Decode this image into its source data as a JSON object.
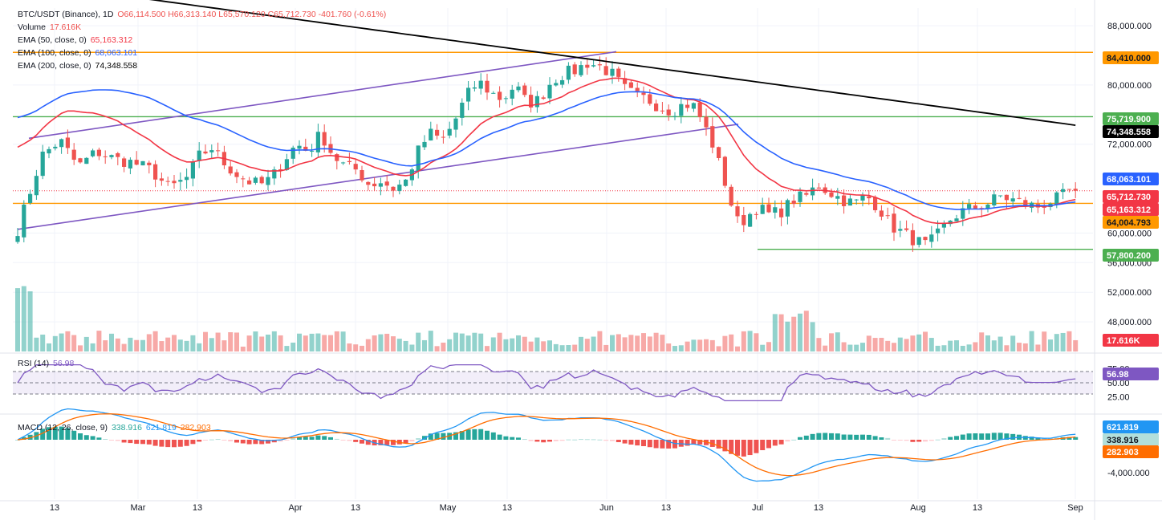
{
  "header": {
    "symbol": "BTC/USDT (Binance), 1D",
    "ohlc": "O66,114.500 H66,313.140 L65,570.120 C65,712.730 -401.760 (-0.61%)",
    "volume_label": "Volume",
    "volume_value": "17.616K",
    "ema50_label": "EMA (50, close, 0)",
    "ema50_value": "65,163.312",
    "ema100_label": "EMA (100, close, 0)",
    "ema100_value": "68,063.101",
    "ema200_label": "EMA (200, close, 0)",
    "ema200_value": "74,348.558"
  },
  "colors": {
    "up": "#26a69a",
    "down": "#ef5350",
    "ema50": "#f23645",
    "ema100": "#2962ff",
    "ema200": "#000000",
    "channel": "#7e57c2",
    "orange_level": "#ff9800",
    "green_level": "#4caf50",
    "rsi": "#7e57c2",
    "macd_line": "#2196f3",
    "signal_line": "#ff6d00"
  },
  "rsi_panel": {
    "label": "RSI (14)",
    "value": "56.98",
    "ticks": [
      "75.00",
      "50.00",
      "25.00"
    ]
  },
  "macd_panel": {
    "label": "MACD (12, 26, close, 9)",
    "hist_value": "338.916",
    "macd_value": "621.819",
    "signal_value": "282.903",
    "tick": "-4,000.000"
  },
  "x_axis": [
    "13",
    "Mar",
    "13",
    "Apr",
    "13",
    "May",
    "13",
    "Jun",
    "13",
    "Jul",
    "13",
    "Aug",
    "13",
    "Sep"
  ],
  "price_axis": [
    "88,000.000",
    "80,000.000",
    "72,000.000",
    "60,000.000",
    "56,000.000",
    "52,000.000",
    "48,000.000"
  ],
  "price_tags": [
    {
      "text": "84,410.000",
      "bg": "#ff9800",
      "fg": "#131722"
    },
    {
      "text": "75,719.900",
      "bg": "#4caf50",
      "fg": "#ffffff"
    },
    {
      "text": "74,348.558",
      "bg": "#000000",
      "fg": "#ffffff"
    },
    {
      "text": "68,063.101",
      "bg": "#2962ff",
      "fg": "#ffffff"
    },
    {
      "text": "65,712.730",
      "bg": "#f23645",
      "fg": "#ffffff"
    },
    {
      "text": "65,163.312",
      "bg": "#f23645",
      "fg": "#ffffff"
    },
    {
      "text": "64,004.793",
      "bg": "#ff9800",
      "fg": "#131722"
    },
    {
      "text": "57,800.200",
      "bg": "#4caf50",
      "fg": "#ffffff"
    },
    {
      "text": "17.616K",
      "bg": "#f23645",
      "fg": "#ffffff"
    },
    {
      "text": "56.98",
      "bg": "#7e57c2",
      "fg": "#ffffff"
    },
    {
      "text": "621.819",
      "bg": "#2196f3",
      "fg": "#ffffff"
    },
    {
      "text": "338.916",
      "bg": "#b2dfdb",
      "fg": "#131722"
    },
    {
      "text": "282.903",
      "bg": "#ff6d00",
      "fg": "#ffffff"
    }
  ],
  "chart_data": {
    "type": "candlestick",
    "timeframe": "1D",
    "price_ylim": [
      56000,
      90000
    ],
    "horizontal_levels": [
      {
        "price": 84410,
        "color": "orange"
      },
      {
        "price": 75719.9,
        "color": "green"
      },
      {
        "price": 64004.793,
        "color": "orange"
      },
      {
        "price": 57800.2,
        "color": "green"
      }
    ],
    "last_close": 65712.73,
    "ema": {
      "ema50": 65163.312,
      "ema100": 68063.101,
      "ema200": 74348.558
    },
    "ohlc_last": {
      "open": 66114.5,
      "high": 66313.14,
      "low": 65570.12,
      "close": 65712.73,
      "change": -401.76,
      "change_pct": -0.61
    },
    "volume_last": "17.616K",
    "rsi": {
      "period": 14,
      "value": 56.98,
      "ylim": [
        0,
        100
      ]
    },
    "macd": {
      "fast": 12,
      "slow": 26,
      "signal": 9,
      "histogram": 338.916,
      "macd": 621.819,
      "signal_value": 282.903
    },
    "price_path": [
      [
        0,
        60500
      ],
      [
        8,
        70500
      ],
      [
        14,
        72500
      ],
      [
        20,
        69000
      ],
      [
        26,
        71000
      ],
      [
        32,
        70000
      ],
      [
        38,
        69500
      ],
      [
        44,
        68500
      ],
      [
        50,
        66000
      ],
      [
        56,
        67500
      ],
      [
        60,
        70500
      ],
      [
        64,
        71500
      ],
      [
        68,
        69500
      ],
      [
        72,
        68000
      ],
      [
        76,
        67000
      ],
      [
        80,
        66500
      ],
      [
        84,
        67500
      ],
      [
        88,
        70000
      ],
      [
        92,
        72000
      ],
      [
        96,
        71000
      ],
      [
        100,
        73500
      ],
      [
        104,
        70500
      ],
      [
        108,
        69000
      ],
      [
        112,
        68500
      ],
      [
        116,
        66500
      ],
      [
        120,
        67000
      ],
      [
        124,
        66000
      ],
      [
        128,
        67000
      ],
      [
        132,
        71000
      ],
      [
        136,
        73500
      ],
      [
        140,
        72500
      ],
      [
        144,
        75000
      ],
      [
        148,
        78500
      ],
      [
        152,
        80500
      ],
      [
        156,
        79000
      ],
      [
        160,
        78000
      ],
      [
        164,
        80000
      ],
      [
        168,
        77500
      ],
      [
        172,
        78000
      ],
      [
        176,
        80500
      ],
      [
        180,
        81500
      ],
      [
        184,
        82000
      ],
      [
        188,
        83000
      ],
      [
        192,
        82500
      ],
      [
        196,
        81500
      ],
      [
        200,
        79500
      ],
      [
        204,
        78500
      ],
      [
        208,
        78000
      ],
      [
        212,
        77000
      ],
      [
        216,
        76500
      ],
      [
        220,
        77500
      ],
      [
        224,
        77000
      ],
      [
        226,
        74500
      ],
      [
        228,
        73500
      ],
      [
        230,
        71000
      ],
      [
        232,
        68500
      ],
      [
        234,
        66000
      ],
      [
        236,
        63000
      ],
      [
        238,
        61000
      ],
      [
        240,
        62000
      ],
      [
        244,
        63500
      ],
      [
        248,
        62500
      ],
      [
        252,
        63000
      ],
      [
        256,
        64500
      ],
      [
        260,
        65000
      ],
      [
        264,
        66500
      ],
      [
        268,
        65500
      ],
      [
        272,
        64500
      ],
      [
        276,
        64000
      ],
      [
        280,
        65000
      ],
      [
        284,
        63500
      ],
      [
        288,
        61000
      ],
      [
        292,
        60000
      ],
      [
        296,
        59000
      ],
      [
        300,
        58300
      ],
      [
        304,
        60000
      ],
      [
        308,
        62000
      ],
      [
        312,
        63000
      ],
      [
        316,
        63500
      ],
      [
        320,
        64000
      ],
      [
        324,
        65000
      ],
      [
        328,
        64500
      ],
      [
        332,
        64000
      ],
      [
        336,
        63500
      ],
      [
        340,
        64200
      ],
      [
        344,
        64800
      ],
      [
        348,
        66000
      ],
      [
        351,
        65712.73
      ]
    ]
  }
}
